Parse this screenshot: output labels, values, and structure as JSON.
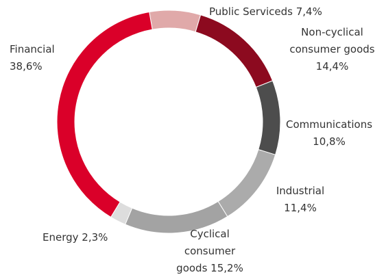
{
  "chart_data": {
    "type": "donut",
    "categories": [
      "Public Serviceds",
      "Non-cyclical consumer goods",
      "Communications",
      "Industrial",
      "Cyclical consumer goods",
      "Energy",
      "Financial"
    ],
    "values": [
      7.4,
      14.4,
      10.8,
      11.4,
      15.2,
      2.3,
      38.6
    ],
    "value_labels": [
      "7,4%",
      "14,4%",
      "10,8%",
      "11,4%",
      "15,2%",
      "2,3%",
      "38,6%"
    ],
    "colors": [
      "#e0a9a9",
      "#8c0a1f",
      "#4d4d4d",
      "#ababab",
      "#a3a3a3",
      "#dddddd",
      "#da0029"
    ]
  }
}
